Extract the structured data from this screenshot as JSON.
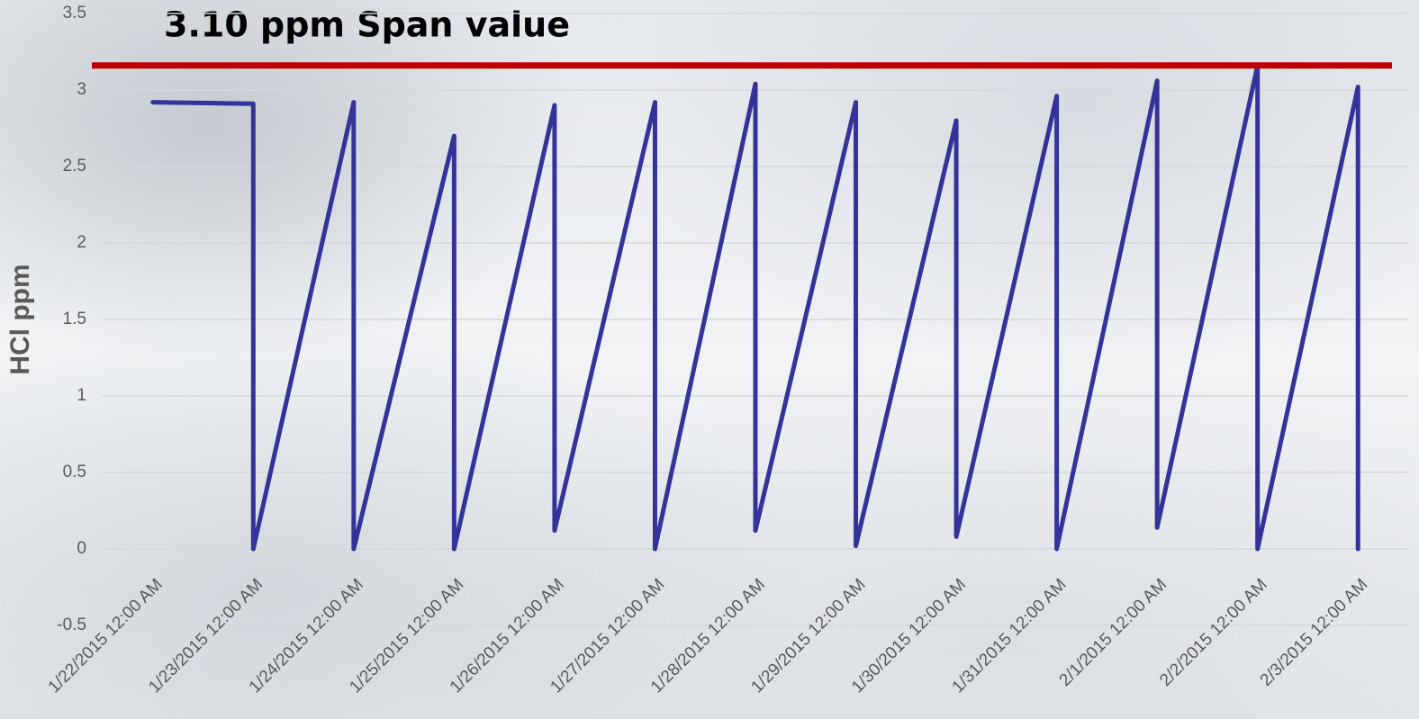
{
  "chart_data": {
    "type": "line",
    "title": "3.10 ppm Span value",
    "y_label": "HCl ppm",
    "categories": [
      "1/22/2015 12:00 AM",
      "1/23/2015 12:00 AM",
      "1/24/2015 12:00 AM",
      "1/25/2015 12:00 AM",
      "1/26/2015 12:00 AM",
      "1/27/2015 12:00 AM",
      "1/28/2015 12:00 AM",
      "1/29/2015 12:00 AM",
      "1/30/2015 12:00 AM",
      "1/31/2015 12:00 AM",
      "2/1/2015 12:00 AM",
      "2/2/2015 12:00 AM",
      "2/3/2015 12:00 AM"
    ],
    "series": [
      {
        "color": "#333399",
        "x": [
          "1/22/2015 12:00 AM",
          "1/23/2015 12:00 AM",
          "1/23/2015 12:00 AM",
          "1/24/2015 12:00 AM",
          "1/24/2015 12:00 AM",
          "1/25/2015 12:00 AM",
          "1/25/2015 12:00 AM",
          "1/26/2015 12:00 AM",
          "1/26/2015 12:00 AM",
          "1/27/2015 12:00 AM",
          "1/27/2015 12:00 AM",
          "1/28/2015 12:00 AM",
          "1/28/2015 12:00 AM",
          "1/29/2015 12:00 AM",
          "1/29/2015 12:00 AM",
          "1/30/2015 12:00 AM",
          "1/30/2015 12:00 AM",
          "1/31/2015 12:00 AM",
          "1/31/2015 12:00 AM",
          "2/1/2015 12:00 AM",
          "2/1/2015 12:00 AM",
          "2/2/2015 12:00 AM",
          "2/2/2015 12:00 AM",
          "2/3/2015 12:00 AM",
          "2/3/2015 12:00 AM"
        ],
        "values": [
          2.92,
          2.91,
          0,
          2.92,
          0,
          2.7,
          0,
          2.9,
          0.12,
          2.92,
          0,
          3.04,
          0.12,
          2.92,
          0.02,
          2.8,
          0.08,
          2.96,
          0,
          3.06,
          0.14,
          3.16,
          0,
          3.02,
          0
        ]
      }
    ],
    "reference_line": {
      "value": 3.16,
      "color": "#c00000"
    },
    "ylim": [
      -0.5,
      3.5
    ],
    "yticks": [
      -0.5,
      0,
      0.5,
      1,
      1.5,
      2,
      2.5,
      3,
      3.5
    ],
    "grid": true
  }
}
